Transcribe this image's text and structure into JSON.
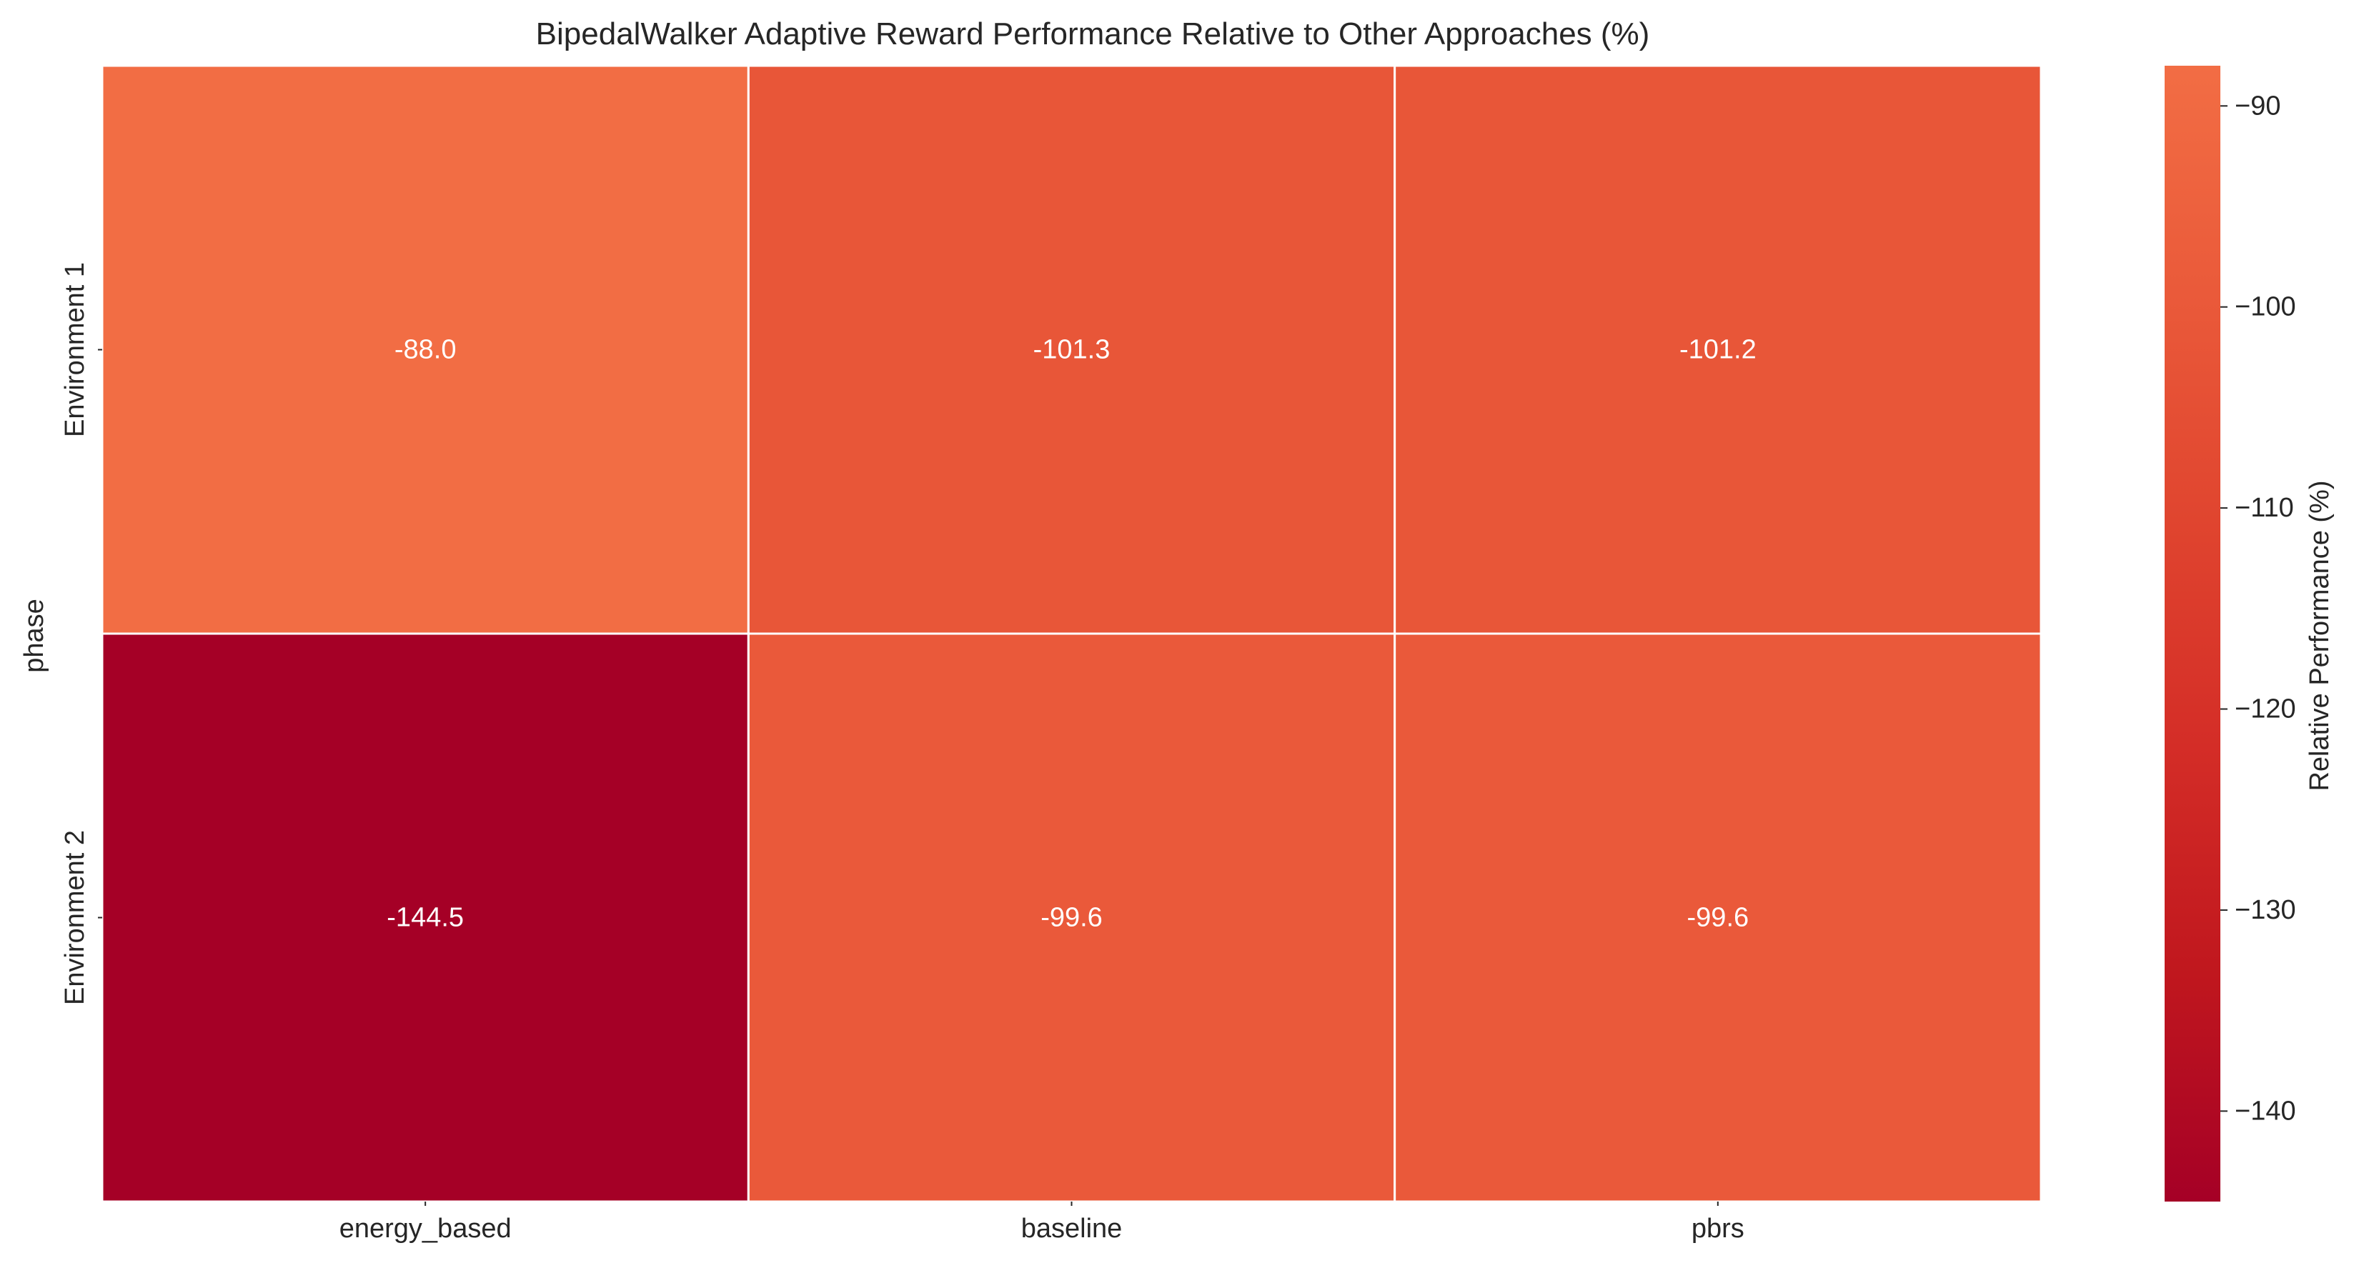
{
  "chart_data": {
    "type": "heatmap",
    "title": "BipedalWalker Adaptive Reward Performance Relative to Other Approaches (%)",
    "xlabel": "",
    "ylabel": "phase",
    "x_categories": [
      "energy_based",
      "baseline",
      "pbrs"
    ],
    "y_categories": [
      "Environment 1",
      "Environment 2"
    ],
    "values": [
      [
        -88.0,
        -101.3,
        -101.2
      ],
      [
        -144.5,
        -99.6,
        -99.6
      ]
    ],
    "cell_labels": [
      [
        "-88.0",
        "-101.3",
        "-101.2"
      ],
      [
        "-144.5",
        "-99.6",
        "-99.6"
      ]
    ],
    "colorbar": {
      "label": "Relative Performance (%)",
      "range": [
        -144.5,
        -88.0
      ],
      "ticks": [
        -90,
        -100,
        -110,
        -120,
        -130,
        -140
      ],
      "tick_labels": [
        "−90",
        "−100",
        "−110",
        "−120",
        "−130",
        "−140"
      ],
      "colormap": "RdBu (red half)",
      "color_stops": [
        "#a50026",
        "#c0171e",
        "#d42d27",
        "#e0452f",
        "#ea5a3a",
        "#f26d44"
      ]
    },
    "grid": false,
    "cell_border_color": "#ffffff"
  }
}
